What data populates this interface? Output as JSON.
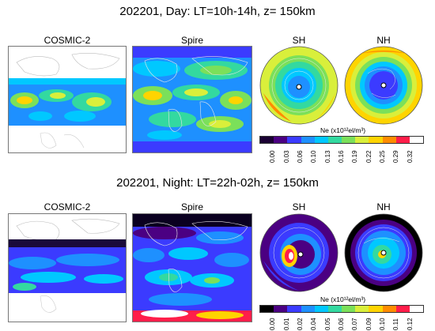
{
  "panels": [
    {
      "title": "202201, Day: LT=10h-14h, z= 150km",
      "labels": {
        "cosmic": "COSMIC-2",
        "spire": "Spire",
        "sh": "SH",
        "nh": "NH"
      },
      "colorbar": {
        "unit": "Ne (x10¹²el/m³)",
        "ticks": [
          "0.00",
          "0.03",
          "0.06",
          "0.10",
          "0.13",
          "0.16",
          "0.19",
          "0.22",
          "0.25",
          "0.29",
          "0.32"
        ],
        "colors": [
          "#1a0033",
          "#4b0082",
          "#3b3bff",
          "#1e90ff",
          "#00c8ff",
          "#33d9a0",
          "#7be05a",
          "#d9ef3b",
          "#ffd400",
          "#ff8c00",
          "#ff1e4a",
          "#ffffff"
        ]
      }
    },
    {
      "title": "202201, Night: LT=22h-02h, z= 150km",
      "labels": {
        "cosmic": "COSMIC-2",
        "spire": "Spire",
        "sh": "SH",
        "nh": "NH"
      },
      "colorbar": {
        "unit": "Ne (x10¹²el/m³)",
        "ticks": [
          "0.00",
          "0.01",
          "0.02",
          "0.04",
          "0.05",
          "0.06",
          "0.07",
          "0.09",
          "0.10",
          "0.11",
          "0.12"
        ],
        "colors": [
          "#000000",
          "#4b0082",
          "#3b3bff",
          "#1e90ff",
          "#00c8ff",
          "#33d9a0",
          "#7be05a",
          "#d9ef3b",
          "#ffd400",
          "#ff8c00",
          "#ff1e4a",
          "#ffffff"
        ]
      }
    }
  ]
}
